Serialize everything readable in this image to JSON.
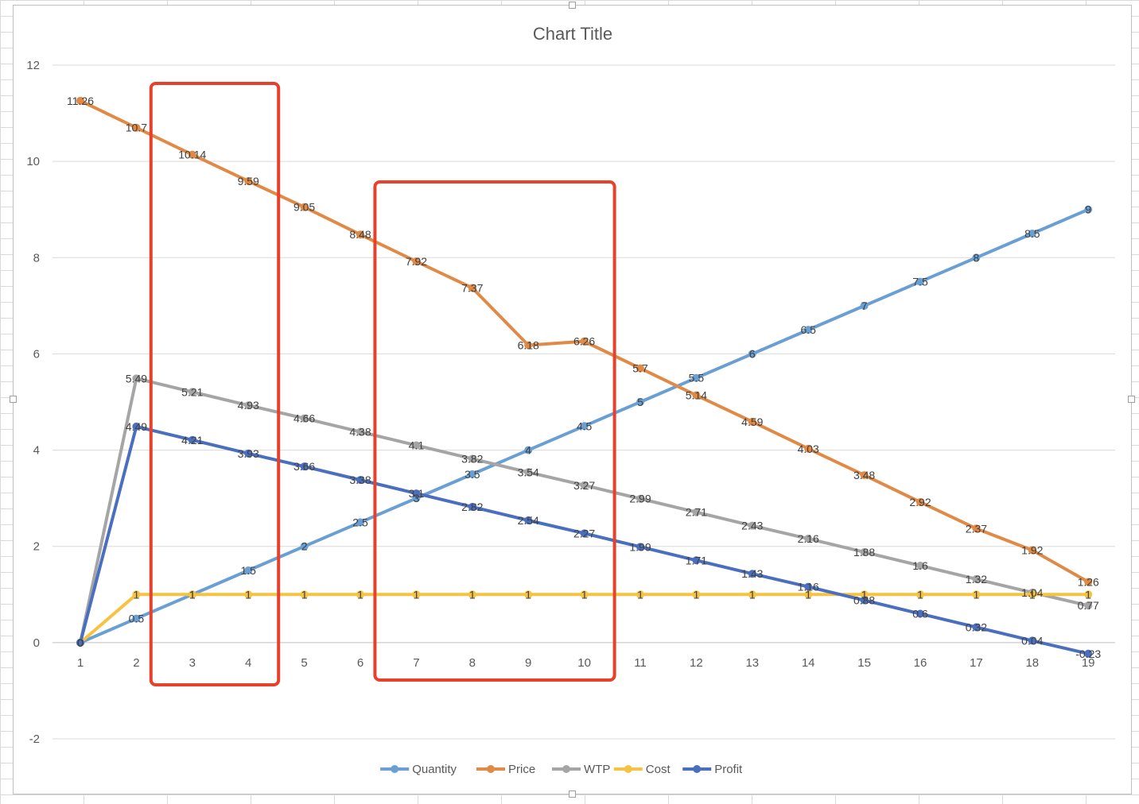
{
  "chart_data": {
    "type": "line",
    "title": "Chart Title",
    "xlabel": "",
    "ylabel": "",
    "categories": [
      "1",
      "2",
      "3",
      "4",
      "5",
      "6",
      "7",
      "8",
      "9",
      "10",
      "11",
      "12",
      "13",
      "14",
      "15",
      "16",
      "17",
      "18",
      "19"
    ],
    "ylim": [
      -2,
      12
    ],
    "yticks": [
      -2,
      0,
      2,
      4,
      6,
      8,
      10,
      12
    ],
    "grid": true,
    "legend_position": "bottom",
    "series": [
      {
        "name": "Quantity",
        "color": "#6a9fd4",
        "values": [
          0,
          0.5,
          1,
          1.5,
          2,
          2.5,
          3,
          3.5,
          4,
          4.5,
          5,
          5.5,
          6,
          6.5,
          7,
          7.5,
          8,
          8.5,
          9
        ],
        "labels": [
          "0",
          "0.5",
          "1",
          "1.5",
          "2",
          "2.5",
          "3",
          "3.5",
          "4",
          "4.5",
          "5",
          "5.5",
          "6",
          "6.5",
          "7",
          "7.5",
          "8",
          "8.5",
          "9"
        ]
      },
      {
        "name": "Price",
        "color": "#e08a45",
        "values": [
          11.26,
          10.7,
          10.14,
          9.59,
          9.05,
          8.48,
          7.92,
          7.37,
          6.18,
          6.26,
          5.7,
          5.14,
          4.59,
          4.03,
          3.48,
          2.92,
          2.37,
          1.92,
          1.26
        ],
        "labels": [
          "11.26",
          "10.7",
          "10.14",
          "9.59",
          "9.05",
          "8.48",
          "7.92",
          "7.37",
          "6.18",
          "6.26",
          "5.7",
          "5.14",
          "4.59",
          "4.03",
          "3.48",
          "2.92",
          "2.37",
          "1.92",
          "1.26"
        ]
      },
      {
        "name": "WTP",
        "color": "#a5a5a5",
        "values": [
          0,
          5.49,
          5.21,
          4.93,
          4.66,
          4.38,
          4.1,
          3.82,
          3.54,
          3.27,
          2.99,
          2.71,
          2.43,
          2.16,
          1.88,
          1.6,
          1.32,
          1.04,
          0.77
        ],
        "labels": [
          "0",
          "5.49",
          "5.21",
          "4.93",
          "4.66",
          "4.38",
          "4.1",
          "3.82",
          "3.54",
          "3.27",
          "2.99",
          "2.71",
          "2.43",
          "2.16",
          "1.88",
          "1.6",
          "1.32",
          "1.04",
          "0.77"
        ]
      },
      {
        "name": "Cost",
        "color": "#f5c242",
        "values": [
          0,
          1,
          1,
          1,
          1,
          1,
          1,
          1,
          1,
          1,
          1,
          1,
          1,
          1,
          1,
          1,
          1,
          1,
          1
        ],
        "labels": [
          "0",
          "1",
          "1",
          "1",
          "1",
          "1",
          "1",
          "1",
          "1",
          "1",
          "1",
          "1",
          "1",
          "1",
          "1",
          "1",
          "1",
          "1",
          "1"
        ]
      },
      {
        "name": "Profit",
        "color": "#4a6fbf",
        "values": [
          0,
          4.49,
          4.21,
          3.93,
          3.66,
          3.38,
          3.1,
          2.82,
          2.54,
          2.27,
          1.99,
          1.71,
          1.43,
          1.16,
          0.88,
          0.6,
          0.32,
          0.04,
          -0.23
        ],
        "labels": [
          "0",
          "4.49",
          "4.21",
          "3.93",
          "3.66",
          "3.38",
          "3.1",
          "2.82",
          "2.54",
          "2.27",
          "1.99",
          "1.71",
          "1.43",
          "1.16",
          "0.88",
          "0.6",
          "0.32",
          "0.04",
          "-0.23"
        ]
      }
    ],
    "highlight_boxes": [
      {
        "x_from": "3",
        "x_to": "4",
        "color": "#e8402a"
      },
      {
        "x_from": "7",
        "x_to": "10",
        "color": "#e8402a"
      }
    ]
  }
}
